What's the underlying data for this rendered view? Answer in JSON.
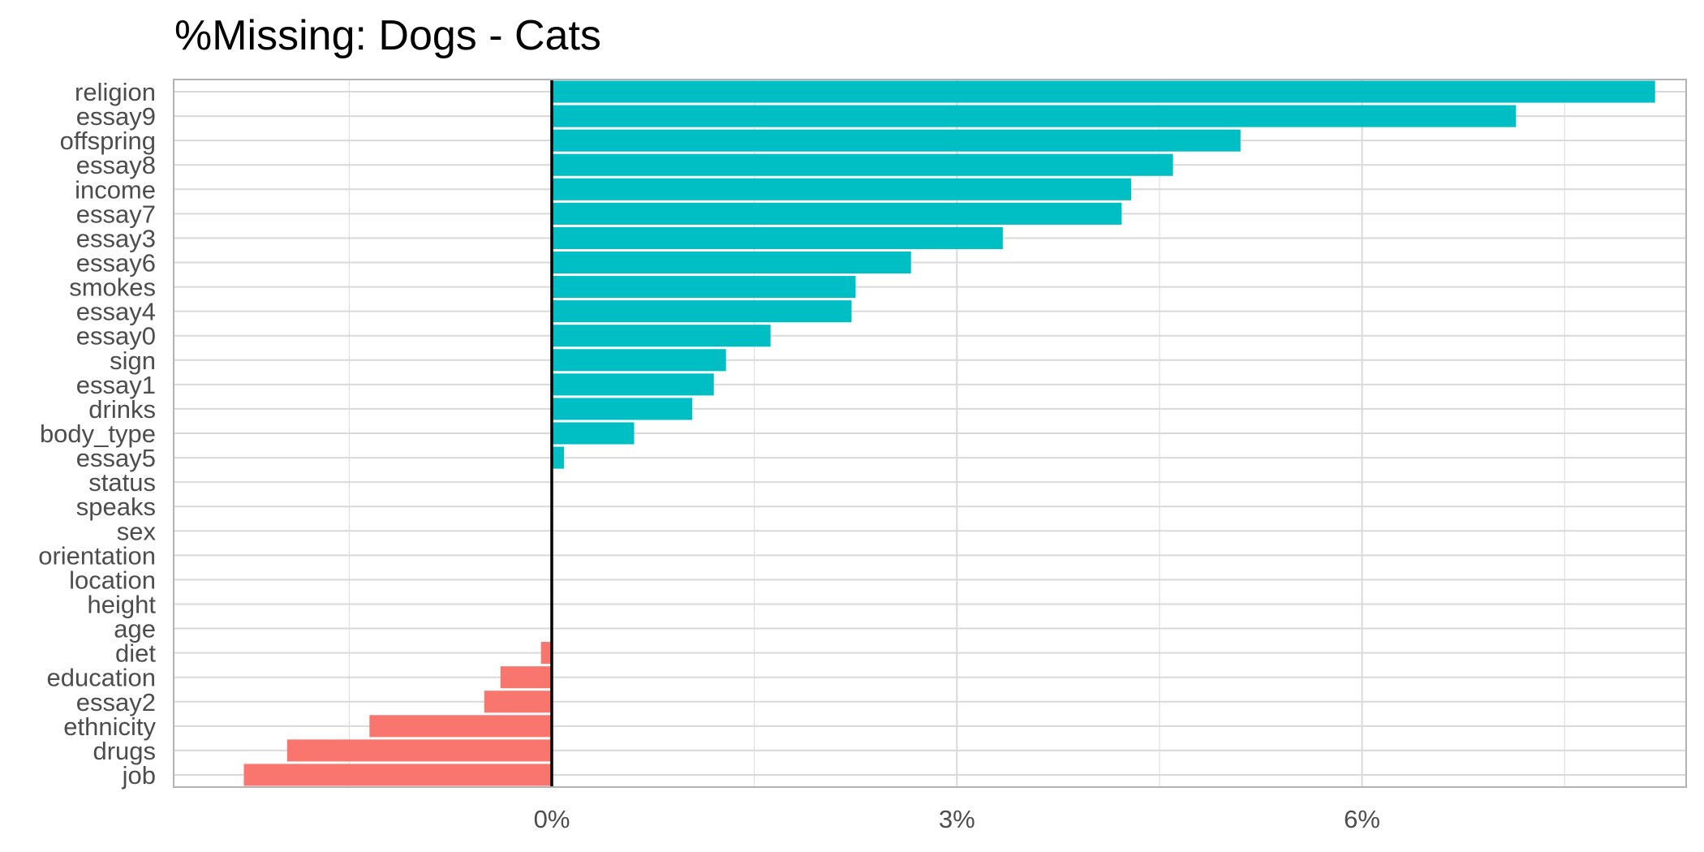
{
  "chart_data": {
    "type": "bar",
    "orientation": "horizontal",
    "title": "%Missing: Dogs - Cats",
    "xlabel": "",
    "ylabel": "",
    "categories": [
      "religion",
      "essay9",
      "offspring",
      "essay8",
      "income",
      "essay7",
      "essay3",
      "essay6",
      "smokes",
      "essay4",
      "essay0",
      "sign",
      "essay1",
      "drinks",
      "body_type",
      "essay5",
      "status",
      "speaks",
      "sex",
      "orientation",
      "location",
      "height",
      "age",
      "diet",
      "education",
      "essay2",
      "ethnicity",
      "drugs",
      "job"
    ],
    "values": [
      8.17,
      7.14,
      5.1,
      4.6,
      4.29,
      4.22,
      3.34,
      2.66,
      2.25,
      2.22,
      1.62,
      1.29,
      1.2,
      1.04,
      0.61,
      0.09,
      0.0,
      0.0,
      0.0,
      0.0,
      0.0,
      0.0,
      0.0,
      -0.08,
      -0.38,
      -0.5,
      -1.35,
      -1.96,
      -2.28
    ],
    "xlim": [
      -2.8,
      8.4
    ],
    "xticks": [
      0,
      3,
      6
    ],
    "xtick_labels": [
      "0%",
      "3%",
      "6%"
    ],
    "grid": true,
    "legend": "none",
    "colors": {
      "positive": "#00BFC4",
      "negative": "#F8766D",
      "zero_line": "#000000",
      "grid": "#d9d9d9",
      "panel_border": "#b3b3b3"
    }
  }
}
